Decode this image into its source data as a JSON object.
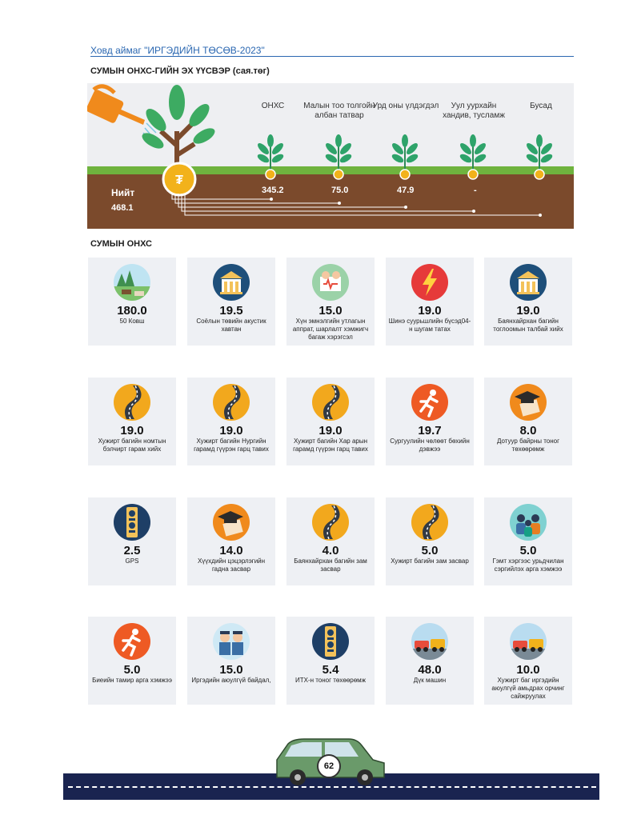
{
  "header": "Ховд аймаг \"ИРГЭДИЙН ТӨСӨВ-2023\"",
  "section_sources": "СУМЫН ОНХС-ГИЙН ЭХ ҮҮСВЭР (сая.төг)",
  "total": {
    "label": "Нийт",
    "value": "468.1"
  },
  "sources": [
    {
      "label": "ОНХС",
      "value": "345.2"
    },
    {
      "label": "Малын тоо толгойн албан татвар",
      "value": "75.0"
    },
    {
      "label": "Урд оны үлдэгдэл",
      "value": "47.9"
    },
    {
      "label": "Уул уурхайн хандив, тусламж",
      "value": "-"
    },
    {
      "label": "Бусад",
      "value": ""
    }
  ],
  "section_projects": "СУМЫН ОНХС",
  "projects": [
    {
      "value": "180.0",
      "label": "50 Ковш",
      "icon": "herd-icon"
    },
    {
      "value": "19.5",
      "label": "Соёлын төвийн акустик хавтан",
      "icon": "building-icon"
    },
    {
      "value": "15.0",
      "label": "Хүн эмнэлгийн утлагын аппрат, шарлалт хэмжигч багаж хэрэгсэл",
      "icon": "medical-icon"
    },
    {
      "value": "19.0",
      "label": "Шинэ суурьшлийн бүсэд04-н шугам татах",
      "icon": "lightning-icon"
    },
    {
      "value": "19.0",
      "label": "Баянхайрхан багийн тоглоомын талбай хийх",
      "icon": "building-icon"
    },
    {
      "value": "19.0",
      "label": "Хужирт багийн  номтын бэлчирт  гарам хийх",
      "icon": "road-icon"
    },
    {
      "value": "19.0",
      "label": "Хужирт багийн Нургийн гарамд гүүрэн гарц тавих",
      "icon": "road-icon"
    },
    {
      "value": "19.0",
      "label": "Хужирт багийн Хар арын гарамд гүүрэн гарц тавих",
      "icon": "road-icon"
    },
    {
      "value": "19.7",
      "label": "Сургуулийн  чөлөөт бөхийн дэвжээ",
      "icon": "runner-icon"
    },
    {
      "value": "8.0",
      "label": "Дотуур байрны тоног төхөөрөмж",
      "icon": "graduation-icon"
    },
    {
      "value": "2.5",
      "label": "GPS",
      "icon": "emblem-icon"
    },
    {
      "value": "14.0",
      "label": "Хүүхдийн цэцэрлэгийн гадна засвар",
      "icon": "graduation-icon"
    },
    {
      "value": "4.0",
      "label": "Баянхайрхан багийн зам засвар",
      "icon": "road-icon"
    },
    {
      "value": "5.0",
      "label": "Хужирт багийн зам засвар",
      "icon": "road-icon"
    },
    {
      "value": "5.0",
      "label": "Гэмт хэргээс урьдчилан сэргийлэх арга хэмжээ",
      "icon": "people-icon"
    },
    {
      "value": "5.0",
      "label": "Биеийн тамир арга хэмжээ",
      "icon": "runner-icon"
    },
    {
      "value": "15.0",
      "label": "Иргэдийн аюулгүй байдал,",
      "icon": "officers-icon"
    },
    {
      "value": "5.4",
      "label": "ИТХ-н тоног төхөөрөмж",
      "icon": "emblem-icon"
    },
    {
      "value": "48.0",
      "label": "Дүк машин",
      "icon": "vehicles-icon"
    },
    {
      "value": "10.0",
      "label": "Хужирт баг иргэдийн аюулгүй амьдрах орчинг сайжруулах",
      "icon": "vehicles-icon"
    }
  ],
  "page_number": "62",
  "colors": {
    "accent": "#2a67b1",
    "soil": "#7b4a2c",
    "grass": "#6fb33e",
    "coin": "#f2b21b",
    "road": "#1a2450",
    "car": "#6a9a6a"
  }
}
